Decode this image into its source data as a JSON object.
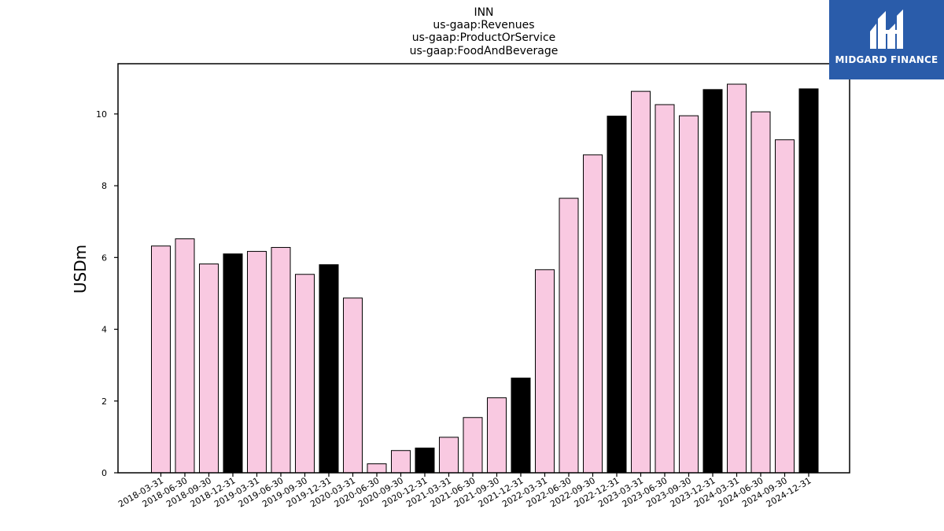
{
  "chart_data": {
    "type": "bar",
    "title": [
      "INN",
      "us-gaap:Revenues",
      "us-gaap:ProductOrService",
      "us-gaap:FoodAndBeverage"
    ],
    "xlabel": "",
    "ylabel": "USDm",
    "ylim": [
      0,
      11.4
    ],
    "yticks": [
      0,
      2,
      4,
      6,
      8,
      10
    ],
    "grid": false,
    "categories": [
      "2018-03-31",
      "2018-06-30",
      "2018-09-30",
      "2018-12-31",
      "2019-03-31",
      "2019-06-30",
      "2019-09-30",
      "2019-12-31",
      "2020-03-31",
      "2020-06-30",
      "2020-09-30",
      "2020-12-31",
      "2021-03-31",
      "2021-06-30",
      "2021-09-30",
      "2021-12-31",
      "2022-03-31",
      "2022-06-30",
      "2022-09-30",
      "2022-12-31",
      "2023-03-31",
      "2023-06-30",
      "2023-09-30",
      "2023-12-31",
      "2024-03-31",
      "2024-06-30",
      "2024-09-30",
      "2024-12-31"
    ],
    "values": [
      6.32,
      6.52,
      5.82,
      6.1,
      6.17,
      6.28,
      5.53,
      5.8,
      4.87,
      0.25,
      0.62,
      0.69,
      0.99,
      1.54,
      2.09,
      2.64,
      5.66,
      7.65,
      8.86,
      9.94,
      10.63,
      10.26,
      9.95,
      10.68,
      10.83,
      10.06,
      9.28,
      10.7
    ],
    "bar_colors": [
      "#f9c9e1",
      "#f9c9e1",
      "#f9c9e1",
      "#000000",
      "#f9c9e1",
      "#f9c9e1",
      "#f9c9e1",
      "#000000",
      "#f9c9e1",
      "#f9c9e1",
      "#f9c9e1",
      "#000000",
      "#f9c9e1",
      "#f9c9e1",
      "#f9c9e1",
      "#000000",
      "#f9c9e1",
      "#f9c9e1",
      "#f9c9e1",
      "#000000",
      "#f9c9e1",
      "#f9c9e1",
      "#f9c9e1",
      "#000000",
      "#f9c9e1",
      "#f9c9e1",
      "#f9c9e1",
      "#000000"
    ]
  },
  "logo": {
    "text": "MIDGARD FINANCE",
    "color": "#2a5caa"
  }
}
